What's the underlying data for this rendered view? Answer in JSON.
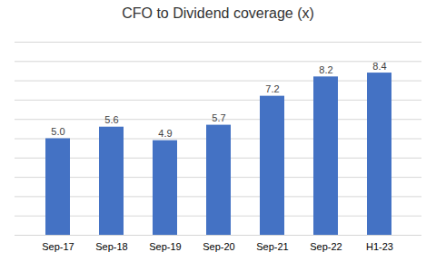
{
  "chart_data": {
    "type": "bar",
    "title": "CFO to Dividend coverage (x)",
    "categories": [
      "Sep-17",
      "Sep-18",
      "Sep-19",
      "Sep-20",
      "Sep-21",
      "Sep-22",
      "H1-23"
    ],
    "values": [
      5.0,
      5.6,
      4.9,
      5.7,
      7.2,
      8.2,
      8.4
    ],
    "value_labels": [
      "5.0",
      "5.6",
      "4.9",
      "5.7",
      "7.2",
      "8.2",
      "8.4"
    ],
    "color": "#4472C4",
    "ylim": [
      0,
      10
    ],
    "yticks": [
      0,
      1,
      2,
      3,
      4,
      5,
      6,
      7,
      8,
      9,
      10
    ],
    "grid": true,
    "data_labels": true,
    "tick_labels": "x"
  }
}
